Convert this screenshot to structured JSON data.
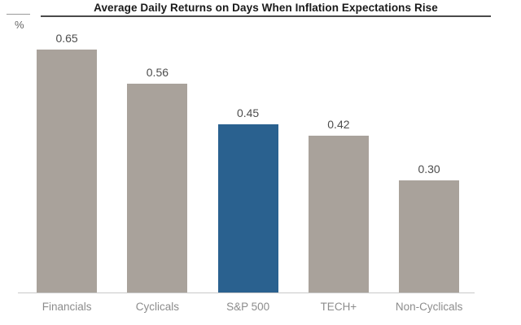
{
  "chart_data": {
    "type": "bar",
    "title": "Average Daily Returns on Days When Inflation Expectations Rise",
    "categories": [
      "Financials",
      "Cyclicals",
      "S&P 500",
      "TECH+",
      "Non-Cyclicals"
    ],
    "values": [
      0.65,
      0.56,
      0.45,
      0.42,
      0.3
    ],
    "value_labels": [
      "0.65",
      "0.56",
      "0.45",
      "0.42",
      "0.30"
    ],
    "ylabel": "%",
    "xlabel": "",
    "ylim": [
      0,
      0.72
    ],
    "grid": false,
    "legend_position": "none",
    "highlight_index": 2,
    "bar_color": "#a9a29b",
    "highlight_color": "#2a618f",
    "value_label_color": "#4d4d4d",
    "category_label_color": "#8c8c8c"
  }
}
